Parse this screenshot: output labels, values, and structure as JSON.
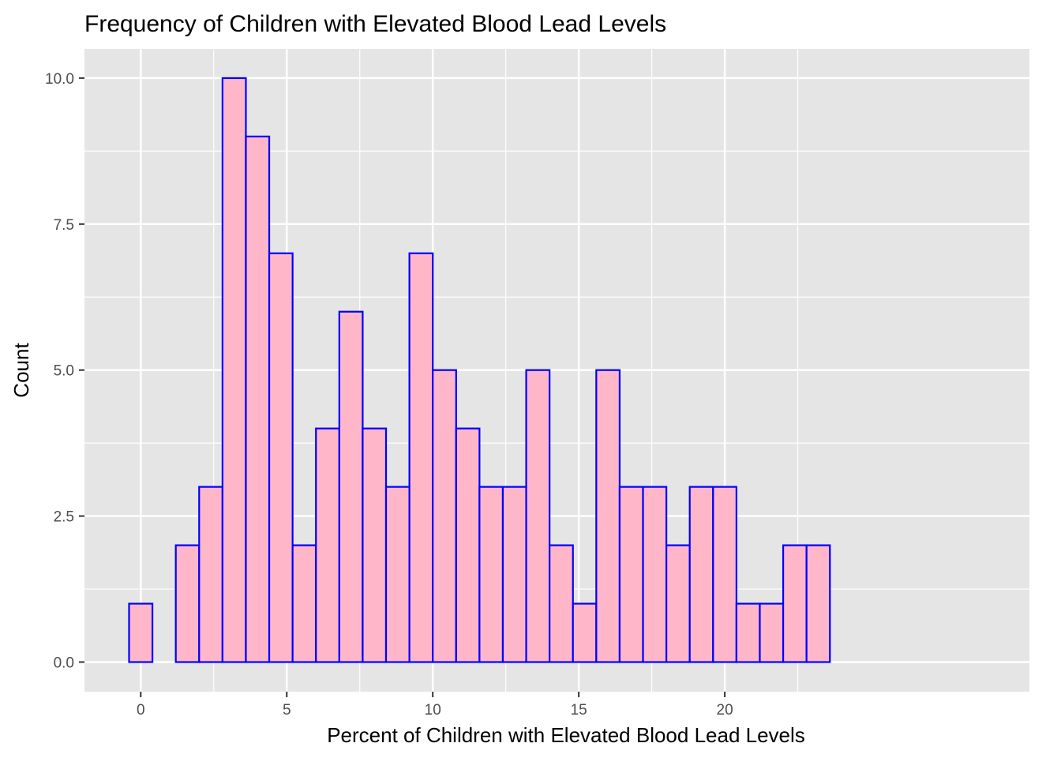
{
  "chart_data": {
    "type": "bar",
    "title": "Frequency of Children with Elevated Blood Lead Levels",
    "xlabel": "Percent of Children with Elevated Blood Lead Levels",
    "ylabel": "Count",
    "xlim": [
      -0.4,
      23.6
    ],
    "ylim": [
      0,
      10
    ],
    "bin_edges": [
      -0.4,
      0.4,
      1.2,
      2.0,
      2.8,
      3.6,
      4.4,
      5.2,
      6.0,
      6.8,
      7.6,
      8.4,
      9.2,
      10.0,
      10.8,
      11.6,
      12.4,
      13.2,
      14.0,
      14.8,
      15.6,
      16.4,
      17.2,
      18.0,
      18.8,
      19.6,
      20.4,
      21.2,
      22.0,
      22.8,
      23.6
    ],
    "values": [
      1,
      0,
      2,
      3,
      10,
      9,
      7,
      2,
      4,
      6,
      4,
      3,
      7,
      5,
      4,
      3,
      3,
      5,
      2,
      1,
      5,
      3,
      3,
      2,
      3,
      3,
      1,
      1,
      2,
      2
    ],
    "x_ticks": [
      0,
      5,
      10,
      15,
      20
    ],
    "x_tick_labels": [
      "0",
      "5",
      "10",
      "15",
      "20"
    ],
    "y_ticks": [
      0,
      2.5,
      5,
      7.5,
      10
    ],
    "y_tick_labels": [
      "0.0",
      "2.5",
      "5.0",
      "7.5",
      "10.0"
    ],
    "bar_fill": "#ffb6c8",
    "bar_outline": "#0000ff",
    "panel_background": "#e5e5e5",
    "grid_color": "#ffffff",
    "grid": true
  }
}
